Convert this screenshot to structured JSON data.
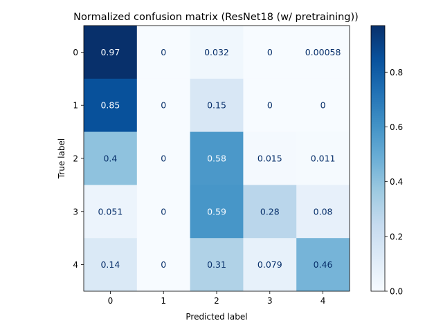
{
  "chart_data": {
    "type": "heatmap",
    "title": "Normalized confusion matrix (ResNet18 (w/ pretraining))",
    "xlabel": "Predicted label",
    "ylabel": "True label",
    "x_categories": [
      "0",
      "1",
      "2",
      "3",
      "4"
    ],
    "y_categories": [
      "0",
      "1",
      "2",
      "3",
      "4"
    ],
    "values": [
      [
        0.97,
        0,
        0.032,
        0,
        0.00058
      ],
      [
        0.85,
        0,
        0.15,
        0,
        0
      ],
      [
        0.4,
        0,
        0.58,
        0.015,
        0.011
      ],
      [
        0.051,
        0,
        0.59,
        0.28,
        0.08
      ],
      [
        0.14,
        0,
        0.31,
        0.079,
        0.46
      ]
    ],
    "cell_labels": [
      [
        "0.97",
        "0",
        "0.032",
        "0",
        "0.00058"
      ],
      [
        "0.85",
        "0",
        "0.15",
        "0",
        "0"
      ],
      [
        "0.4",
        "0",
        "0.58",
        "0.015",
        "0.011"
      ],
      [
        "0.051",
        "0",
        "0.59",
        "0.28",
        "0.08"
      ],
      [
        "0.14",
        "0",
        "0.31",
        "0.079",
        "0.46"
      ]
    ],
    "colorbar": {
      "range": [
        0,
        0.97
      ],
      "ticks": [
        0.0,
        0.2,
        0.4,
        0.6,
        0.8
      ],
      "tick_labels": [
        "0.0",
        "0.2",
        "0.4",
        "0.6",
        "0.8"
      ]
    },
    "colormap": "Blues",
    "grid": false
  }
}
